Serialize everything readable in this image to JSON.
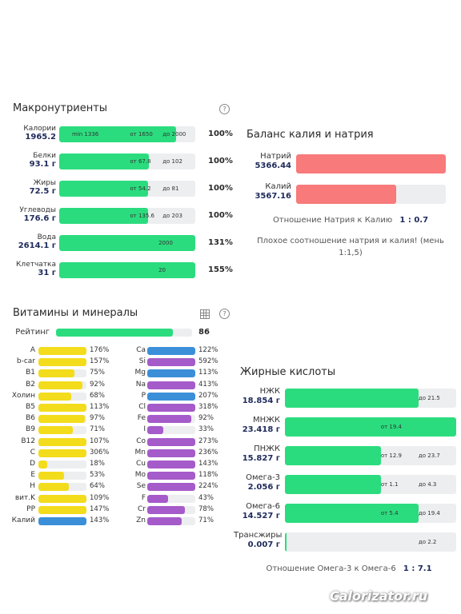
{
  "colors": {
    "green": "#2bdc7e",
    "red": "#f87a7a",
    "yellow": "#f3dc1b",
    "blue": "#3b8fd9",
    "purple": "#a55bc9",
    "track": "#eceef0"
  },
  "macros": {
    "title": "Макронутриенты",
    "help_icon": "question-icon",
    "rows": [
      {
        "name": "Калории",
        "value": "1965.2",
        "min": "min 1336",
        "from": "от 1650",
        "to": "до 2000",
        "pct": "100%",
        "fill": 0.86
      },
      {
        "name": "Белки",
        "value": "93.1 г",
        "min": "",
        "from": "от 67.8",
        "to": "до 102",
        "pct": "100%",
        "fill": 0.66
      },
      {
        "name": "Жиры",
        "value": "72.5 г",
        "min": "",
        "from": "от 54.2",
        "to": "до 81",
        "pct": "100%",
        "fill": 0.65
      },
      {
        "name": "Углеводы",
        "value": "176.6 г",
        "min": "",
        "from": "от 135.6",
        "to": "до 203",
        "pct": "100%",
        "fill": 0.65
      },
      {
        "name": "Вода",
        "value": "2614.1 г",
        "min": "",
        "from": "",
        "to": "",
        "mid": "2000",
        "pct": "131%",
        "fill": 1.0
      },
      {
        "name": "Клетчатка",
        "value": "31 г",
        "min": "",
        "from": "",
        "to": "",
        "mid": "20",
        "pct": "155%",
        "fill": 1.0
      }
    ]
  },
  "balance": {
    "title": "Баланс калия и натрия",
    "rows": [
      {
        "name": "Натрий",
        "value": "5366.44",
        "fill": 1.0
      },
      {
        "name": "Калий",
        "value": "3567.16",
        "fill": 0.67
      }
    ],
    "ratio_label": "Отношение Натрия к Калию",
    "ratio_value": "1 : 0.7",
    "note_line1": "Плохое соотношение натрия и калия! (мень",
    "note_line2": "1:1,5)"
  },
  "vitamins": {
    "title": "Витамины и минералы",
    "table_icon": "table-icon",
    "help_icon": "question-icon",
    "rating_label": "Рейтинг",
    "rating_value": "86",
    "rating_fill": 0.86,
    "left": [
      {
        "name": "A",
        "pct": "176%",
        "fill": 1.0,
        "color": "yellow"
      },
      {
        "name": "b-car",
        "pct": "157%",
        "fill": 1.0,
        "color": "yellow"
      },
      {
        "name": "B1",
        "pct": "75%",
        "fill": 0.75,
        "color": "yellow"
      },
      {
        "name": "B2",
        "pct": "92%",
        "fill": 0.92,
        "color": "yellow"
      },
      {
        "name": "Холин",
        "pct": "68%",
        "fill": 0.68,
        "color": "yellow"
      },
      {
        "name": "B5",
        "pct": "113%",
        "fill": 1.0,
        "color": "yellow"
      },
      {
        "name": "B6",
        "pct": "97%",
        "fill": 0.97,
        "color": "yellow"
      },
      {
        "name": "B9",
        "pct": "71%",
        "fill": 0.71,
        "color": "yellow"
      },
      {
        "name": "B12",
        "pct": "107%",
        "fill": 1.0,
        "color": "yellow"
      },
      {
        "name": "C",
        "pct": "306%",
        "fill": 1.0,
        "color": "yellow"
      },
      {
        "name": "D",
        "pct": "18%",
        "fill": 0.18,
        "color": "yellow"
      },
      {
        "name": "E",
        "pct": "53%",
        "fill": 0.53,
        "color": "yellow"
      },
      {
        "name": "H",
        "pct": "64%",
        "fill": 0.64,
        "color": "yellow"
      },
      {
        "name": "вит.K",
        "pct": "109%",
        "fill": 1.0,
        "color": "yellow"
      },
      {
        "name": "PP",
        "pct": "147%",
        "fill": 1.0,
        "color": "yellow"
      },
      {
        "name": "Калий",
        "pct": "143%",
        "fill": 1.0,
        "color": "blue"
      }
    ],
    "right": [
      {
        "name": "Ca",
        "pct": "122%",
        "fill": 1.0,
        "color": "blue"
      },
      {
        "name": "Si",
        "pct": "592%",
        "fill": 1.0,
        "color": "purple"
      },
      {
        "name": "Mg",
        "pct": "113%",
        "fill": 1.0,
        "color": "blue"
      },
      {
        "name": "Na",
        "pct": "413%",
        "fill": 1.0,
        "color": "purple"
      },
      {
        "name": "P",
        "pct": "207%",
        "fill": 1.0,
        "color": "blue"
      },
      {
        "name": "Cl",
        "pct": "318%",
        "fill": 1.0,
        "color": "purple"
      },
      {
        "name": "Fe",
        "pct": "92%",
        "fill": 0.92,
        "color": "purple"
      },
      {
        "name": "I",
        "pct": "33%",
        "fill": 0.33,
        "color": "purple"
      },
      {
        "name": "Co",
        "pct": "273%",
        "fill": 1.0,
        "color": "purple"
      },
      {
        "name": "Mn",
        "pct": "236%",
        "fill": 1.0,
        "color": "purple"
      },
      {
        "name": "Cu",
        "pct": "143%",
        "fill": 1.0,
        "color": "purple"
      },
      {
        "name": "Mo",
        "pct": "118%",
        "fill": 1.0,
        "color": "purple"
      },
      {
        "name": "Se",
        "pct": "224%",
        "fill": 1.0,
        "color": "purple"
      },
      {
        "name": "F",
        "pct": "43%",
        "fill": 0.43,
        "color": "purple"
      },
      {
        "name": "Cr",
        "pct": "78%",
        "fill": 0.78,
        "color": "purple"
      },
      {
        "name": "Zn",
        "pct": "71%",
        "fill": 0.71,
        "color": "purple"
      }
    ]
  },
  "fats": {
    "title": "Жирные кислоты",
    "rows": [
      {
        "name": "НЖК",
        "value": "18.854 г",
        "from": "",
        "to": "до 21.5",
        "fill": 0.78
      },
      {
        "name": "МНЖК",
        "value": "23.418 г",
        "from": "от 19.4",
        "to": "",
        "fill": 1.0
      },
      {
        "name": "ПНЖК",
        "value": "15.827 г",
        "from": "от 12.9",
        "to": "до 23.7",
        "fill": 0.56
      },
      {
        "name": "Омега-3",
        "value": "2.056 г",
        "from": "от 1.1",
        "to": "до 4.3",
        "fill": 0.56
      },
      {
        "name": "Омега-6",
        "value": "14.527 г",
        "from": "от 5.4",
        "to": "до 19.4",
        "fill": 0.78
      },
      {
        "name": "Трансжиры",
        "value": "0.007 г",
        "from": "",
        "to": "до 2.2",
        "fill": 0.005
      }
    ],
    "ratio_label": "Отношение Омега-3 к Омега-6",
    "ratio_value": "1 : 7.1"
  },
  "watermark": "Calorizator.ru"
}
